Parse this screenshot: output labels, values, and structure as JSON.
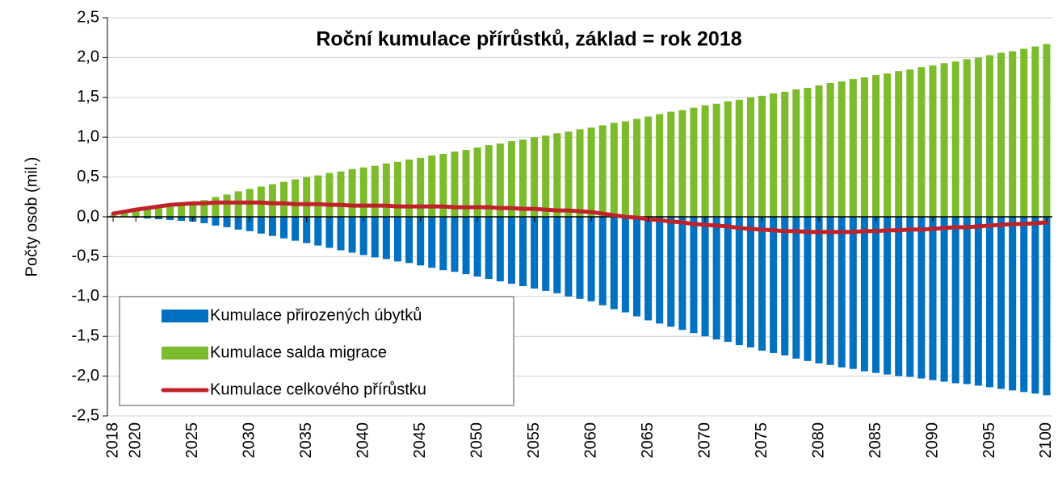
{
  "chart_data": {
    "type": "bar",
    "title": "Roční kumulace přírůstků, základ = rok 2018",
    "y_label": "Počty osob (mil.)",
    "x": [
      2018,
      2019,
      2020,
      2021,
      2022,
      2023,
      2024,
      2025,
      2026,
      2027,
      2028,
      2029,
      2030,
      2031,
      2032,
      2033,
      2034,
      2035,
      2036,
      2037,
      2038,
      2039,
      2040,
      2041,
      2042,
      2043,
      2044,
      2045,
      2046,
      2047,
      2048,
      2049,
      2050,
      2051,
      2052,
      2053,
      2054,
      2055,
      2056,
      2057,
      2058,
      2059,
      2060,
      2061,
      2062,
      2063,
      2064,
      2065,
      2066,
      2067,
      2068,
      2069,
      2070,
      2071,
      2072,
      2073,
      2074,
      2075,
      2076,
      2077,
      2078,
      2079,
      2080,
      2081,
      2082,
      2083,
      2084,
      2085,
      2086,
      2087,
      2088,
      2089,
      2090,
      2091,
      2092,
      2093,
      2094,
      2095,
      2096,
      2097,
      2098,
      2099,
      2100
    ],
    "series": [
      {
        "name": "Kumulace přirozených úbytků",
        "type": "bar",
        "color": "#0070c0",
        "values": [
          0,
          0,
          -0.01,
          -0.02,
          -0.03,
          -0.04,
          -0.05,
          -0.06,
          -0.08,
          -0.11,
          -0.13,
          -0.16,
          -0.18,
          -0.21,
          -0.24,
          -0.27,
          -0.3,
          -0.33,
          -0.36,
          -0.39,
          -0.42,
          -0.45,
          -0.48,
          -0.51,
          -0.53,
          -0.56,
          -0.58,
          -0.61,
          -0.64,
          -0.67,
          -0.69,
          -0.72,
          -0.75,
          -0.78,
          -0.81,
          -0.84,
          -0.87,
          -0.9,
          -0.93,
          -0.96,
          -1.0,
          -1.03,
          -1.06,
          -1.11,
          -1.16,
          -1.2,
          -1.25,
          -1.3,
          -1.34,
          -1.38,
          -1.42,
          -1.46,
          -1.5,
          -1.54,
          -1.57,
          -1.61,
          -1.64,
          -1.68,
          -1.71,
          -1.74,
          -1.78,
          -1.81,
          -1.84,
          -1.86,
          -1.89,
          -1.91,
          -1.94,
          -1.96,
          -1.98,
          -2.0,
          -2.01,
          -2.03,
          -2.05,
          -2.07,
          -2.09,
          -2.1,
          -2.12,
          -2.14,
          -2.16,
          -2.18,
          -2.2,
          -2.22,
          -2.24
        ]
      },
      {
        "name": "Kumulace salda migrace",
        "type": "bar",
        "color": "#7cbb2c",
        "values": [
          0.02,
          0.045,
          0.07,
          0.09,
          0.11,
          0.14,
          0.16,
          0.18,
          0.21,
          0.25,
          0.28,
          0.32,
          0.35,
          0.38,
          0.41,
          0.44,
          0.47,
          0.5,
          0.52,
          0.55,
          0.57,
          0.6,
          0.62,
          0.64,
          0.67,
          0.69,
          0.72,
          0.74,
          0.77,
          0.79,
          0.82,
          0.84,
          0.87,
          0.9,
          0.92,
          0.95,
          0.97,
          1.0,
          1.02,
          1.05,
          1.07,
          1.1,
          1.12,
          1.15,
          1.18,
          1.2,
          1.23,
          1.26,
          1.29,
          1.32,
          1.34,
          1.37,
          1.4,
          1.42,
          1.45,
          1.47,
          1.5,
          1.52,
          1.55,
          1.57,
          1.6,
          1.62,
          1.65,
          1.68,
          1.7,
          1.73,
          1.75,
          1.78,
          1.8,
          1.83,
          1.85,
          1.88,
          1.9,
          1.93,
          1.95,
          1.98,
          2.0,
          2.03,
          2.06,
          2.08,
          2.11,
          2.14,
          2.17
        ]
      },
      {
        "name": "Kumulace celkového přírůstku",
        "type": "line",
        "color": "#c0222a",
        "values": [
          0.04,
          0.065,
          0.09,
          0.11,
          0.13,
          0.15,
          0.16,
          0.17,
          0.17,
          0.18,
          0.18,
          0.18,
          0.18,
          0.18,
          0.17,
          0.17,
          0.16,
          0.16,
          0.16,
          0.15,
          0.15,
          0.14,
          0.14,
          0.14,
          0.14,
          0.13,
          0.13,
          0.13,
          0.13,
          0.13,
          0.12,
          0.12,
          0.12,
          0.12,
          0.11,
          0.11,
          0.1,
          0.1,
          0.09,
          0.08,
          0.08,
          0.07,
          0.06,
          0.04,
          0.02,
          0.0,
          -0.01,
          -0.03,
          -0.04,
          -0.06,
          -0.07,
          -0.09,
          -0.1,
          -0.11,
          -0.12,
          -0.14,
          -0.15,
          -0.16,
          -0.17,
          -0.18,
          -0.18,
          -0.19,
          -0.19,
          -0.19,
          -0.19,
          -0.19,
          -0.18,
          -0.18,
          -0.17,
          -0.17,
          -0.16,
          -0.16,
          -0.15,
          -0.14,
          -0.13,
          -0.13,
          -0.12,
          -0.11,
          -0.1,
          -0.09,
          -0.09,
          -0.08,
          -0.07
        ]
      }
    ],
    "xlim": [
      2017.5,
      2100.5
    ],
    "xticks": [
      2018,
      2020,
      2025,
      2030,
      2035,
      2040,
      2045,
      2050,
      2055,
      2060,
      2065,
      2070,
      2075,
      2080,
      2085,
      2090,
      2095,
      2100
    ],
    "ylim": [
      -2.5,
      2.5
    ],
    "yticks": [
      {
        "value": -2.5,
        "label": "-2,5"
      },
      {
        "value": -2,
        "label": "-2,0"
      },
      {
        "value": -1.5,
        "label": "-1,5"
      },
      {
        "value": -1,
        "label": "-1,0"
      },
      {
        "value": -0.5,
        "label": "-0,5"
      },
      {
        "value": 0,
        "label": "0,0"
      },
      {
        "value": 0.5,
        "label": "0,5"
      },
      {
        "value": 1,
        "label": "1,0"
      },
      {
        "value": 1.5,
        "label": "1,5"
      },
      {
        "value": 2,
        "label": "2,0"
      },
      {
        "value": 2.5,
        "label": "2,5"
      }
    ],
    "grid": true,
    "legend": "lower left"
  }
}
